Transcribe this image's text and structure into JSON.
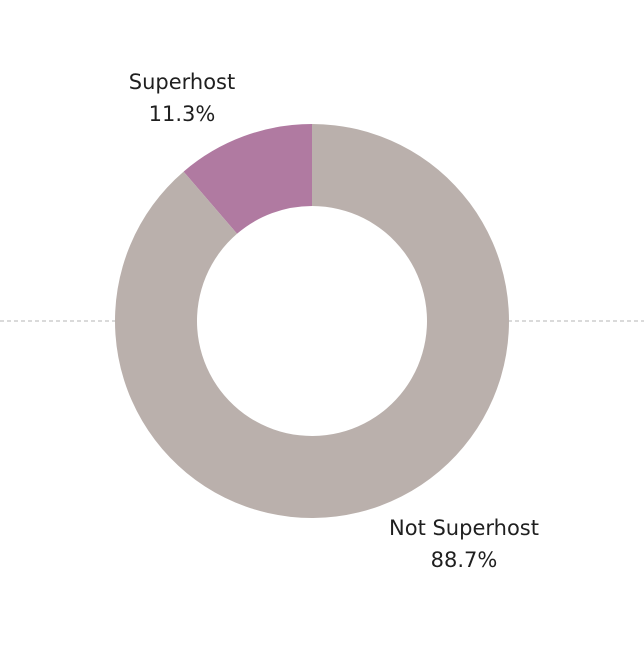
{
  "chart_data": {
    "type": "pie",
    "variant": "donut",
    "categories": [
      "Superhost",
      "Not Superhost"
    ],
    "values": [
      11.3,
      88.7
    ],
    "value_labels": [
      "11.3%",
      "88.7%"
    ],
    "colors": [
      "#b07aa1",
      "#bab0ac"
    ],
    "title": "",
    "legend": "none",
    "reference_line": "horizontal dashed line through center"
  }
}
